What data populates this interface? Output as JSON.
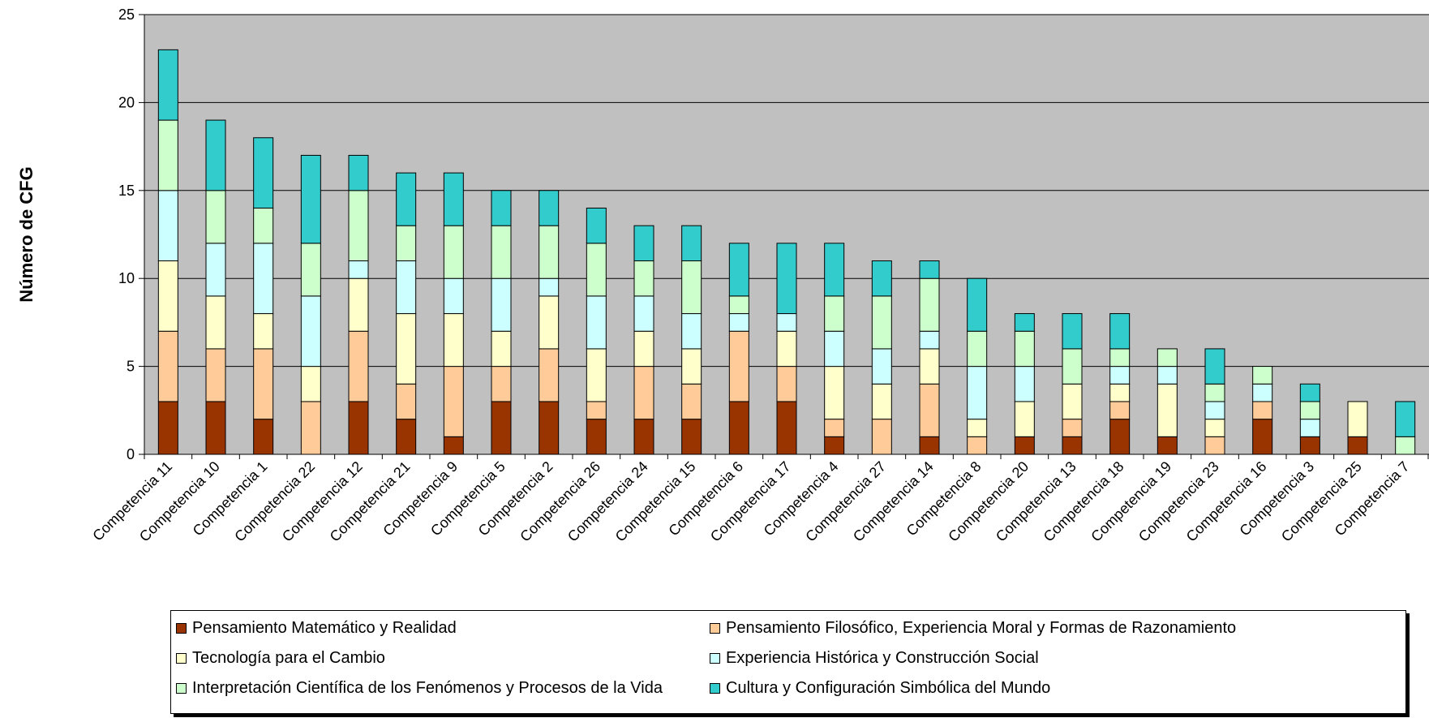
{
  "chart_data": {
    "type": "bar",
    "stacked": true,
    "ylabel": "Número de CFG",
    "xlabel": "",
    "ylim": [
      0,
      25
    ],
    "yticks": [
      0,
      5,
      10,
      15,
      20,
      25
    ],
    "grid": true,
    "legend_position": "bottom",
    "plot_background": "#C0C0C0",
    "categories": [
      "Competencia 11",
      "Competencia 10",
      "Competencia 1",
      "Competencia 22",
      "Competencia 12",
      "Competencia 21",
      "Competencia 9",
      "Competencia 5",
      "Competencia 2",
      "Competencia 26",
      "Competencia 24",
      "Competencia 15",
      "Competencia 6",
      "Competencia 17",
      "Competencia 4",
      "Competencia 27",
      "Competencia 14",
      "Competencia 8",
      "Competencia 20",
      "Competencia 13",
      "Competencia 18",
      "Competencia 19",
      "Competencia 23",
      "Competencia 16",
      "Competencia 3",
      "Competencia 25",
      "Competencia 7"
    ],
    "series": [
      {
        "name": "Pensamiento Matemático y Realidad",
        "color": "#993300",
        "values": [
          3,
          3,
          2,
          0,
          3,
          2,
          1,
          3,
          3,
          2,
          2,
          2,
          3,
          3,
          1,
          0,
          1,
          0,
          1,
          1,
          2,
          1,
          0,
          2,
          1,
          1,
          0
        ]
      },
      {
        "name": "Pensamiento Filosófico, Experiencia Moral y Formas de Razonamiento",
        "color": "#FFCC99",
        "values": [
          4,
          3,
          4,
          3,
          4,
          2,
          4,
          2,
          3,
          1,
          3,
          2,
          4,
          2,
          1,
          2,
          3,
          1,
          0,
          1,
          1,
          0,
          1,
          1,
          0,
          0,
          0
        ]
      },
      {
        "name": "Tecnología para el Cambio",
        "color": "#FFFFCC",
        "values": [
          4,
          3,
          2,
          2,
          3,
          4,
          3,
          2,
          3,
          3,
          2,
          2,
          0,
          2,
          3,
          2,
          2,
          1,
          2,
          2,
          1,
          3,
          1,
          0,
          0,
          2,
          0
        ]
      },
      {
        "name": "Experiencia Histórica y Construcción Social",
        "color": "#CCFFFF",
        "values": [
          4,
          3,
          4,
          4,
          1,
          3,
          2,
          3,
          1,
          3,
          2,
          2,
          1,
          1,
          2,
          2,
          1,
          3,
          2,
          0,
          1,
          1,
          1,
          1,
          1,
          0,
          0
        ]
      },
      {
        "name": "Interpretación Científica de los Fenómenos y Procesos de la Vida",
        "color": "#CCFFCC",
        "values": [
          4,
          3,
          2,
          3,
          4,
          2,
          3,
          3,
          3,
          3,
          2,
          3,
          1,
          0,
          2,
          3,
          3,
          2,
          2,
          2,
          1,
          1,
          1,
          1,
          1,
          0,
          1
        ]
      },
      {
        "name": "Cultura y Configuración Simbólica del Mundo",
        "color": "#33CCCC",
        "values": [
          4,
          4,
          4,
          5,
          2,
          3,
          3,
          2,
          2,
          2,
          2,
          2,
          3,
          4,
          3,
          2,
          1,
          3,
          1,
          2,
          2,
          0,
          2,
          0,
          1,
          0,
          2
        ]
      }
    ],
    "legend_order": [
      0,
      1,
      2,
      3,
      4,
      5
    ]
  }
}
